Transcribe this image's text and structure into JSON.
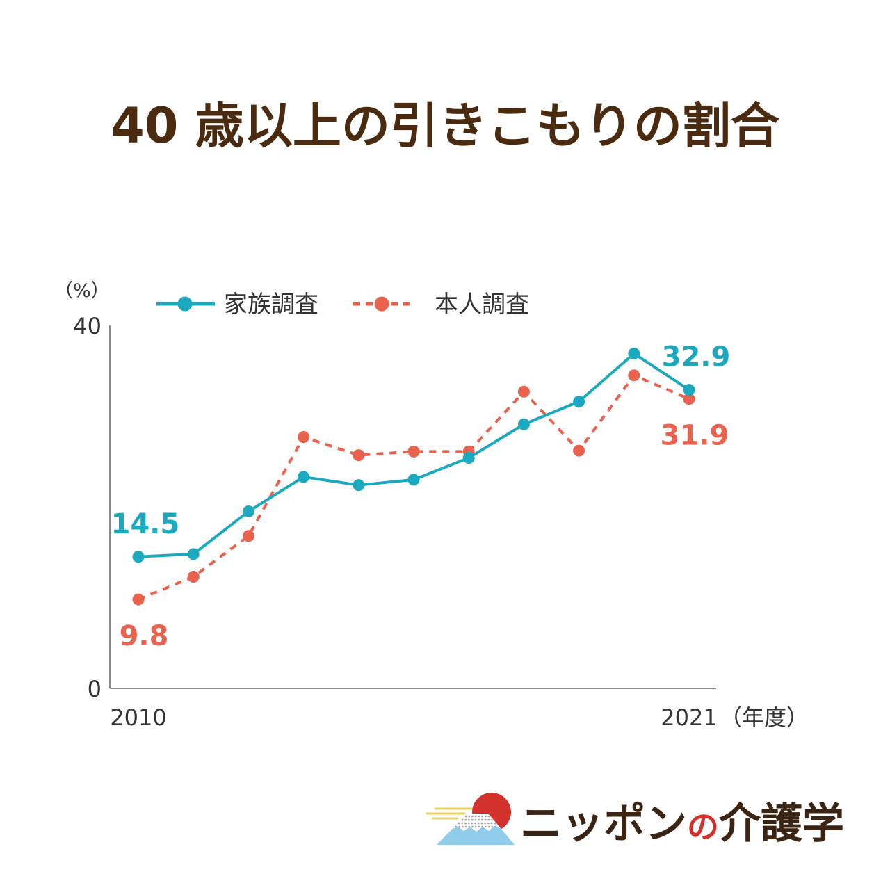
{
  "chart_data": {
    "type": "line",
    "title": "40 歳以上の引きこもりの割合",
    "xlabel": "（年度）",
    "ylabel": "（%）",
    "categories": [
      "2010",
      "",
      "",
      "",
      "",
      "",
      "",
      "",
      "",
      "",
      "2021"
    ],
    "ylim": [
      0,
      40
    ],
    "yticks": [
      0,
      40
    ],
    "grid": false,
    "legend": "top",
    "series": [
      {
        "name": "家族調査",
        "color": "#1aa9bf",
        "line_style": "solid",
        "values": [
          14.5,
          14.8,
          19.5,
          23.3,
          22.4,
          23.0,
          25.4,
          29.1,
          31.6,
          36.9,
          32.9
        ]
      },
      {
        "name": "本人調査",
        "color": "#e8624d",
        "line_style": "dashed",
        "values": [
          9.8,
          12.3,
          16.8,
          27.7,
          25.7,
          26.1,
          26.1,
          32.7,
          26.2,
          34.5,
          31.9
        ]
      }
    ],
    "data_labels": [
      {
        "series": 0,
        "index": 0,
        "text": "14.5",
        "position": "above"
      },
      {
        "series": 1,
        "index": 0,
        "text": "9.8",
        "position": "below"
      },
      {
        "series": 0,
        "index": 10,
        "text": "32.9",
        "position": "above"
      },
      {
        "series": 1,
        "index": 10,
        "text": "31.9",
        "position": "below"
      }
    ]
  },
  "colors": {
    "title": "#4a2b10",
    "axis": "#666666"
  },
  "logo": {
    "icon": "mount-fuji-sun-icon",
    "text_part1": "ニッポン",
    "text_part2": "の",
    "text_part3": "介護学",
    "accent_color": "#d2312c"
  }
}
